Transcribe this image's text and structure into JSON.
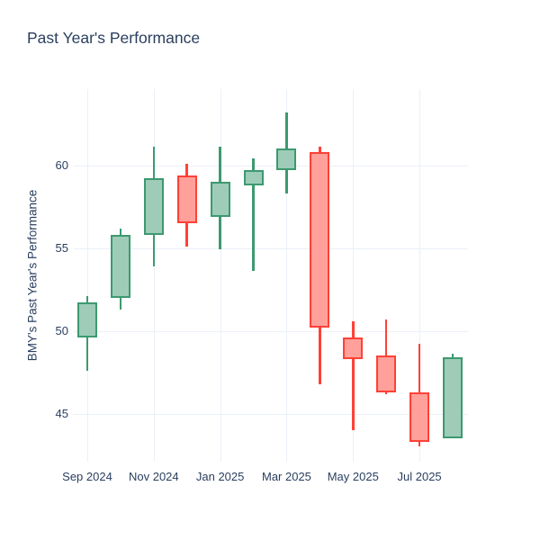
{
  "chart_data": {
    "type": "candlestick",
    "title": "Past Year's Performance",
    "ylabel": "BMY's Past Year's Performance",
    "xlabel": "",
    "legend_position": "none",
    "grid": true,
    "ylim": [
      42.1,
      64.6
    ],
    "y_ticks": [
      45,
      50,
      55,
      60
    ],
    "x_tick_labels": [
      "Sep 2024",
      "Nov 2024",
      "Jan 2025",
      "Mar 2025",
      "May 2025",
      "Jul 2025"
    ],
    "x_tick_indices": [
      0,
      2,
      4,
      6,
      8,
      10
    ],
    "categories": [
      "Sep 2024",
      "Oct 2024",
      "Nov 2024",
      "Dec 2024",
      "Jan 2025",
      "Feb 2025",
      "Mar 2025",
      "Apr 2025",
      "May 2025",
      "Jun 2025",
      "Jul 2025",
      "Aug 2025"
    ],
    "ohlc": [
      {
        "month": "Sep 2024",
        "open": 49.6,
        "high": 52.1,
        "low": 47.6,
        "close": 51.7,
        "direction": "increasing"
      },
      {
        "month": "Oct 2024",
        "open": 52.0,
        "high": 56.2,
        "low": 51.3,
        "close": 55.8,
        "direction": "increasing"
      },
      {
        "month": "Nov 2024",
        "open": 55.8,
        "high": 61.1,
        "low": 53.9,
        "close": 59.2,
        "direction": "increasing"
      },
      {
        "month": "Dec 2024",
        "open": 59.4,
        "high": 60.1,
        "low": 55.1,
        "close": 56.5,
        "direction": "decreasing"
      },
      {
        "month": "Jan 2025",
        "open": 56.9,
        "high": 61.1,
        "low": 54.9,
        "close": 59.0,
        "direction": "increasing"
      },
      {
        "month": "Feb 2025",
        "open": 58.8,
        "high": 60.4,
        "low": 53.6,
        "close": 59.7,
        "direction": "increasing"
      },
      {
        "month": "Mar 2025",
        "open": 59.7,
        "high": 63.2,
        "low": 58.3,
        "close": 61.0,
        "direction": "increasing"
      },
      {
        "month": "Apr 2025",
        "open": 60.8,
        "high": 61.1,
        "low": 46.8,
        "close": 50.2,
        "direction": "decreasing"
      },
      {
        "month": "May 2025",
        "open": 49.6,
        "high": 50.6,
        "low": 44.0,
        "close": 48.3,
        "direction": "decreasing"
      },
      {
        "month": "Jun 2025",
        "open": 48.5,
        "high": 50.7,
        "low": 46.2,
        "close": 46.3,
        "direction": "decreasing"
      },
      {
        "month": "Jul 2025",
        "open": 46.3,
        "high": 49.2,
        "low": 43.0,
        "close": 43.3,
        "direction": "decreasing"
      },
      {
        "month": "Aug 2025",
        "open": 43.5,
        "high": 48.6,
        "low": 43.5,
        "close": 48.4,
        "direction": "increasing"
      }
    ],
    "colors": {
      "increasing_line": "#3D9970",
      "increasing_fill": "#9ECCB8",
      "decreasing_line": "#FF4136",
      "decreasing_fill": "#FFA09B",
      "grid": "#EBF0F8",
      "text": "#2A3F5F",
      "background": "#FFFFFF"
    }
  }
}
